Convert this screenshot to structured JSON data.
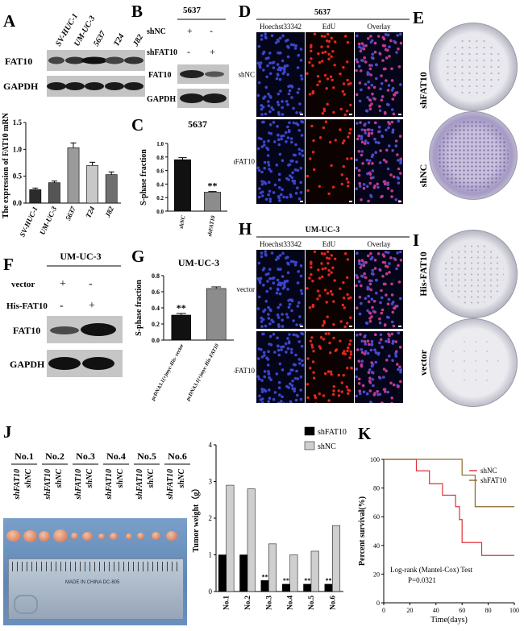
{
  "panels": {
    "A": {
      "label": "A",
      "lanes": [
        "SV-HUC-1",
        "UM-UC-3",
        "5637",
        "T24",
        "J82"
      ],
      "bands": [
        "FAT10",
        "GAPDH"
      ]
    },
    "B": {
      "label": "B",
      "title": "5637",
      "rows": [
        {
          "name": "shNC",
          "marks": [
            "+",
            "-"
          ]
        },
        {
          "name": "shFAT10",
          "marks": [
            "-",
            "+"
          ]
        }
      ],
      "bands": [
        "FAT10",
        "GAPDH"
      ]
    },
    "C": {
      "label": "C"
    },
    "D": {
      "label": "D",
      "title": "5637",
      "columns": [
        "Hoechst33342",
        "EdU",
        "Overlay"
      ],
      "rows": [
        "shNC",
        "shFAT10"
      ]
    },
    "E": {
      "label": "E",
      "dishes": [
        "shFAT10",
        "shNC"
      ]
    },
    "F": {
      "label": "F",
      "title": "UM-UC-3",
      "rows": [
        {
          "name": "vector",
          "marks": [
            "+",
            "-"
          ]
        },
        {
          "name": "His-FAT10",
          "marks": [
            "-",
            "+"
          ]
        }
      ],
      "bands": [
        "FAT10",
        "GAPDH"
      ]
    },
    "G": {
      "label": "G"
    },
    "H": {
      "label": "H",
      "title": "UM-UC-3",
      "columns": [
        "Hoechst33342",
        "EdU",
        "Overlay"
      ],
      "rows": [
        "vector",
        "His-FAT10"
      ]
    },
    "I": {
      "label": "I",
      "dishes": [
        "His-FAT10",
        "vector"
      ]
    },
    "J": {
      "label": "J",
      "mice": [
        "No.1",
        "No.2",
        "No.3",
        "No.4",
        "No.5",
        "No.6"
      ],
      "groups": [
        "shFAT10",
        "shNC"
      ],
      "ruler_text": "MADE IN CHINA DC-805"
    },
    "K": {
      "label": "K"
    }
  },
  "chart_data": [
    {
      "id": "A-mrna",
      "type": "bar",
      "categories": [
        "SV-HUC-1",
        "UM-UC-3",
        "5637",
        "T24",
        "J82"
      ],
      "values": [
        0.25,
        0.38,
        1.03,
        0.7,
        0.53
      ],
      "errors": [
        0.03,
        0.03,
        0.09,
        0.06,
        0.05
      ],
      "colors": [
        "#2b2b2b",
        "#555555",
        "#9a9a9a",
        "#c8c8c8",
        "#6e6e6e"
      ],
      "ylabel": "The expression of FAT10 mRNA",
      "ylim": [
        0,
        1.5
      ],
      "yticks": [
        "0.0",
        "0.5",
        "1.0",
        "1.5"
      ]
    },
    {
      "id": "C-sphase",
      "type": "bar",
      "title": "5637",
      "categories": [
        "shNC",
        "shFAT10"
      ],
      "values": [
        0.76,
        0.28
      ],
      "errors": [
        0.03,
        0.01
      ],
      "colors": [
        "#111111",
        "#8c8c8c"
      ],
      "ylabel": "S-phase fraction",
      "ylim": [
        0,
        1.0
      ],
      "yticks": [
        "0.0",
        "0.2",
        "0.4",
        "0.6",
        "0.8",
        "1.0"
      ],
      "annotations": [
        "",
        "**"
      ]
    },
    {
      "id": "G-sphase",
      "type": "bar",
      "title": "UM-UC-3",
      "categories": [
        "pcDNA3.1(+)myc-His- vector",
        "pcDNA3.1(+)myc-His-FAT10"
      ],
      "values": [
        0.31,
        0.64
      ],
      "errors": [
        0.02,
        0.02
      ],
      "colors": [
        "#111111",
        "#8c8c8c"
      ],
      "ylabel": "S-phase fraction",
      "ylim": [
        0,
        0.8
      ],
      "yticks": [
        "0.0",
        "0.2",
        "0.4",
        "0.6",
        "0.8"
      ],
      "annotations": [
        "**",
        ""
      ]
    },
    {
      "id": "J-weight",
      "type": "bar",
      "categories": [
        "No.1",
        "No.2",
        "No.3",
        "No.4",
        "No.5",
        "No.6"
      ],
      "series": [
        {
          "name": "shFAT10",
          "values": [
            1.0,
            1.0,
            0.3,
            0.2,
            0.2,
            0.2
          ],
          "color": "#000000"
        },
        {
          "name": "shNC",
          "values": [
            2.9,
            2.8,
            1.3,
            1.0,
            1.1,
            1.8
          ],
          "color": "#cfcfcf"
        }
      ],
      "ylabel": "Tumor weight（g）",
      "ylim": [
        0,
        4
      ],
      "yticks": [
        "0",
        "1",
        "2",
        "3",
        "4"
      ],
      "annotation": "**",
      "legend": "top-right"
    },
    {
      "id": "K-survival",
      "type": "line",
      "xlabel": "Time(days)",
      "ylabel": "Percent survival(%)",
      "xlim": [
        0,
        100
      ],
      "ylim": [
        0,
        100
      ],
      "xticks": [
        "0",
        "20",
        "40",
        "60",
        "80",
        "100"
      ],
      "yticks": [
        "0",
        "20",
        "40",
        "60",
        "80",
        "100"
      ],
      "series": [
        {
          "name": "shNC",
          "color": "#e0303a",
          "x": [
            0,
            25,
            35,
            45,
            55,
            58,
            60,
            75,
            100
          ],
          "y": [
            100,
            92,
            83,
            75,
            67,
            58,
            42,
            33,
            33
          ]
        },
        {
          "name": "shFAT10",
          "color": "#8a6a2a",
          "x": [
            0,
            50,
            60,
            70,
            100
          ],
          "y": [
            100,
            100,
            89,
            67,
            67
          ]
        }
      ],
      "annotation_lines": [
        "Log-rank (Mantel-Cox) Test",
        "P=0.0321"
      ],
      "legend": "top-right"
    }
  ]
}
